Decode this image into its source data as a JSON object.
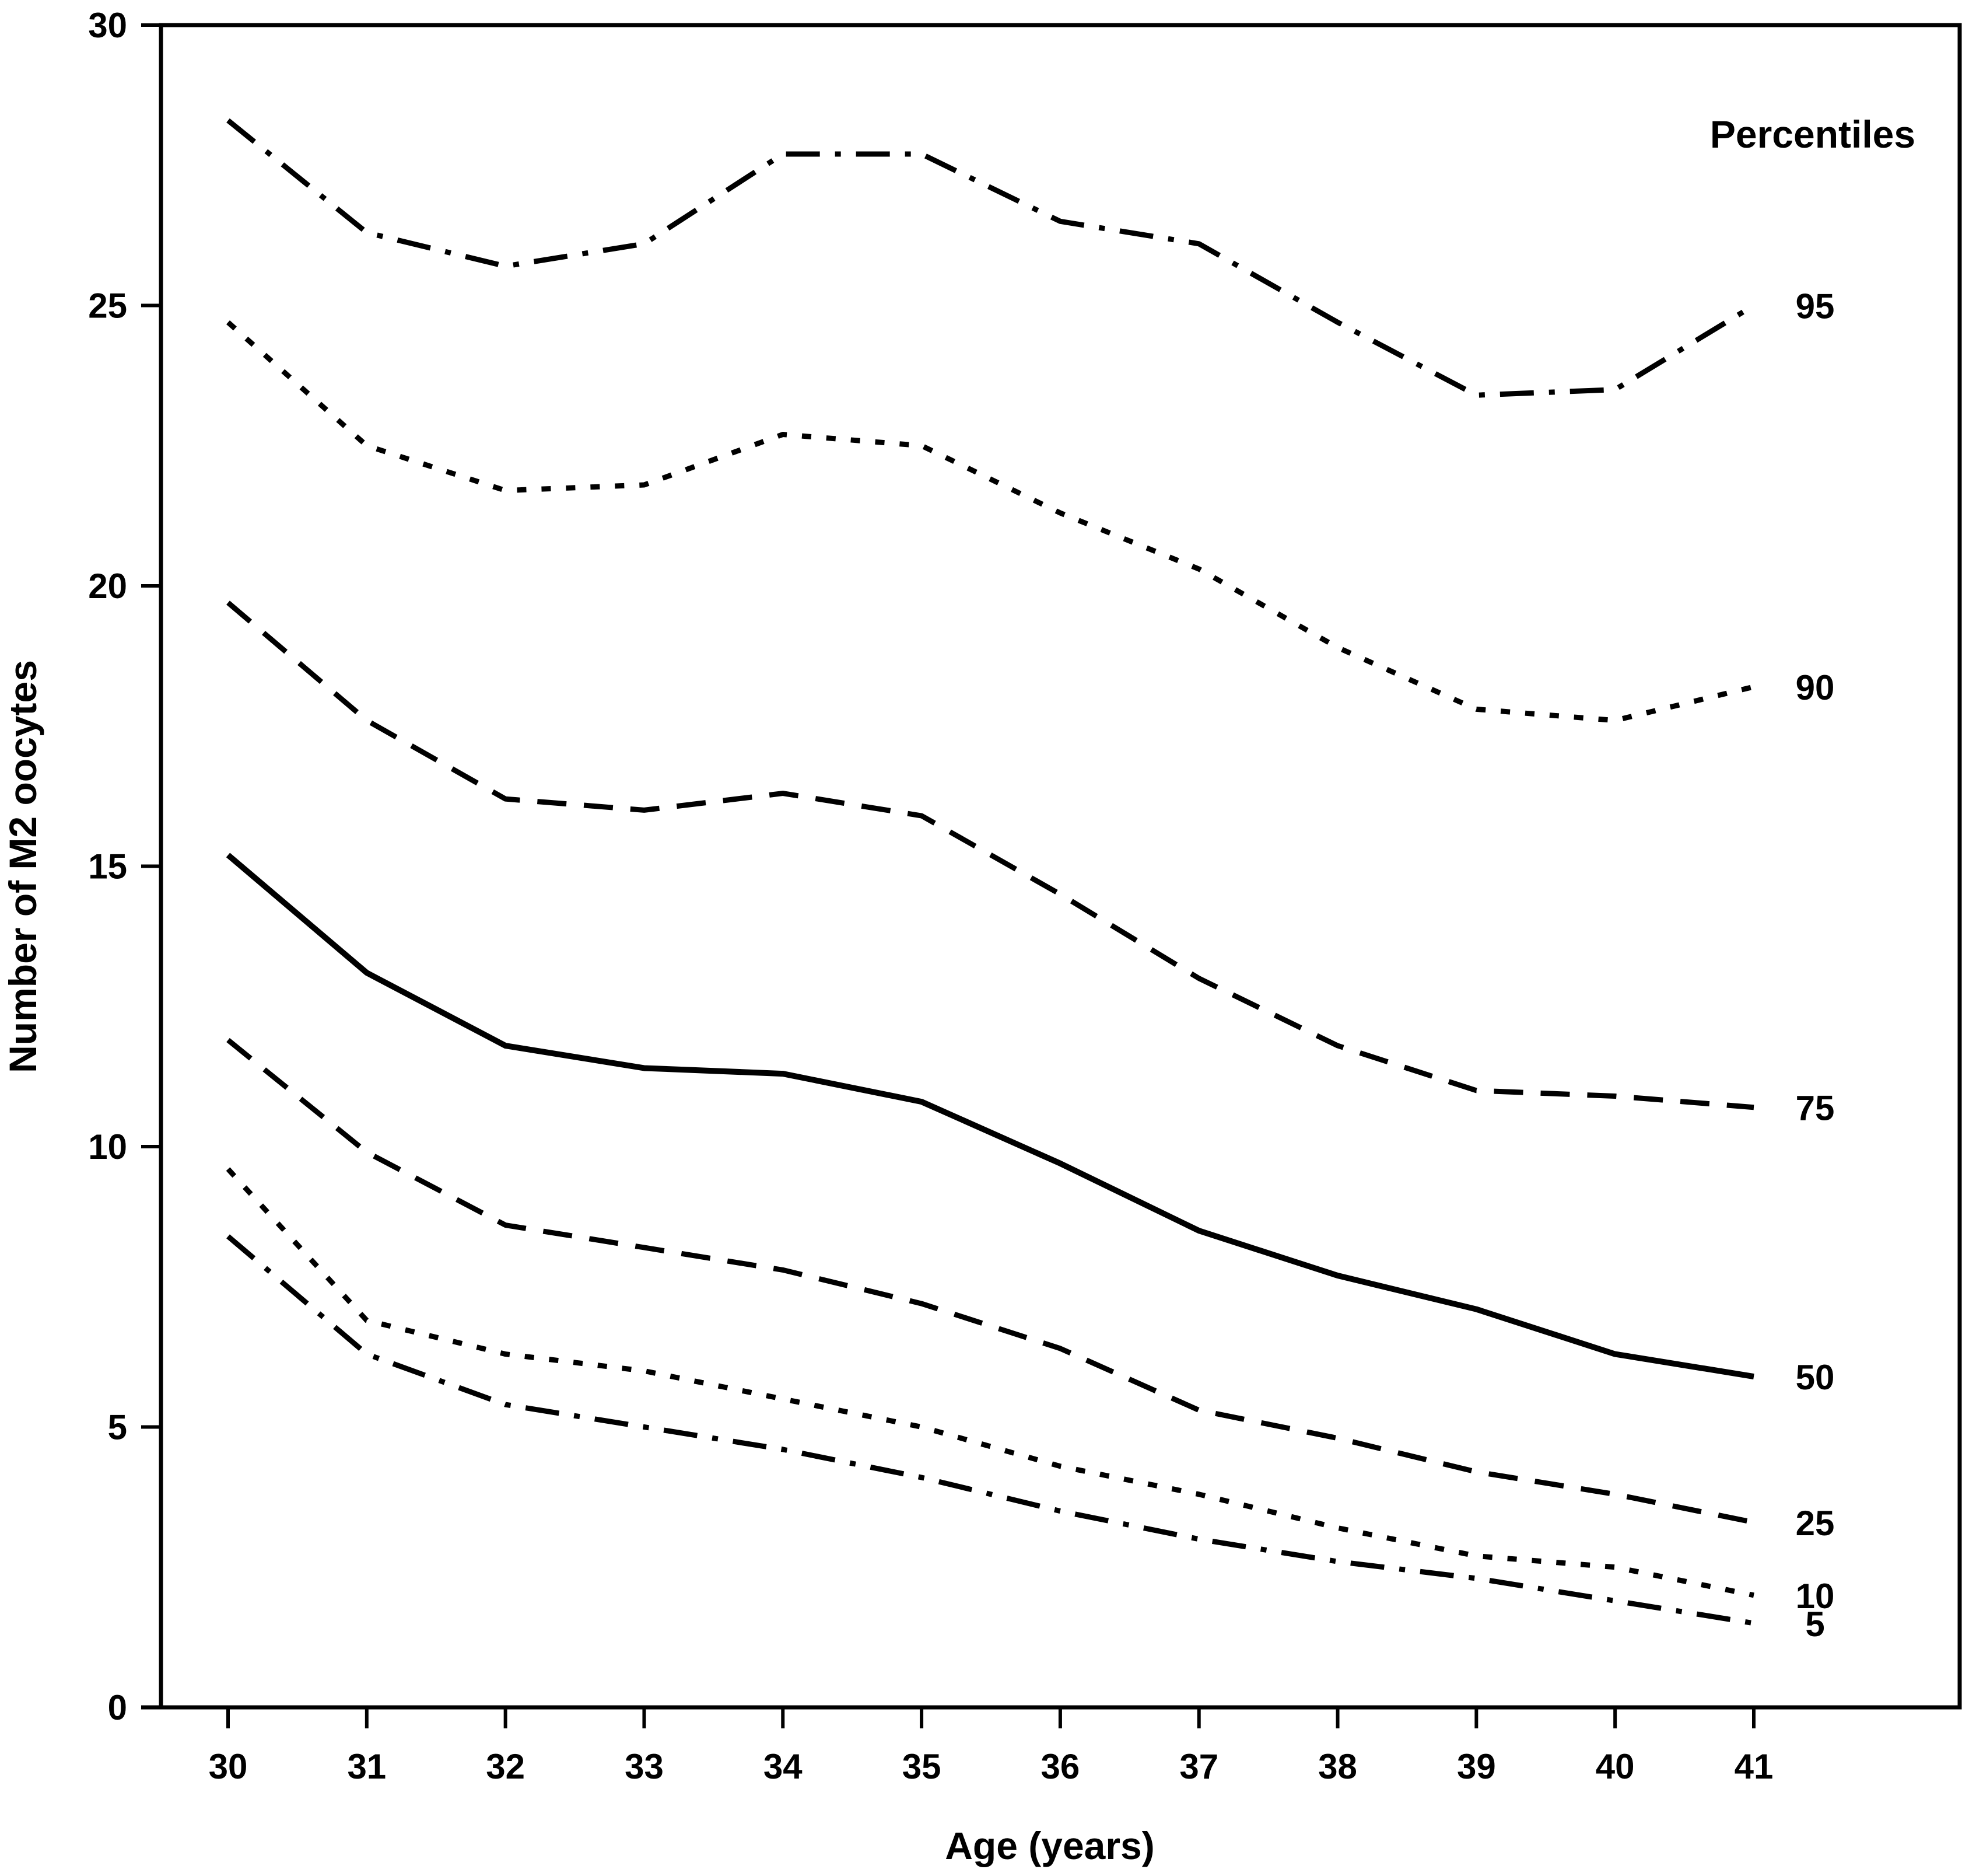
{
  "chart_data": {
    "type": "line",
    "legend_title": "Percentiles",
    "xlabel": "Age (years)",
    "ylabel": "Number of M2 oocytes",
    "x": [
      30,
      31,
      32,
      33,
      34,
      35,
      36,
      37,
      38,
      39,
      40,
      41
    ],
    "x_tick_labels": [
      "30",
      "31",
      "32",
      "33",
      "34",
      "35",
      "36",
      "37",
      "38",
      "39",
      "40",
      "41"
    ],
    "y_ticks": [
      0,
      5,
      10,
      15,
      20,
      25,
      30
    ],
    "y_tick_labels": [
      "0",
      "5",
      "10",
      "15",
      "20",
      "25",
      "30"
    ],
    "ylim": [
      0,
      30
    ],
    "xlim": [
      29.4,
      42.6
    ],
    "grid": false,
    "legend_position": "right-inline-labels",
    "line_color": "#000000",
    "background_color": "#ffffff",
    "series": [
      {
        "name": "95",
        "style": "dashdot",
        "values": [
          28.3,
          26.3,
          25.7,
          26.1,
          27.7,
          27.7,
          26.5,
          26.1,
          24.7,
          23.4,
          23.5,
          25.0
        ]
      },
      {
        "name": "90",
        "style": "dot",
        "values": [
          24.7,
          22.5,
          21.7,
          21.8,
          22.7,
          22.5,
          21.3,
          20.3,
          18.9,
          17.8,
          17.6,
          18.2
        ]
      },
      {
        "name": "75",
        "style": "dash",
        "values": [
          19.7,
          17.6,
          16.2,
          16.0,
          16.3,
          15.9,
          14.5,
          13.0,
          11.8,
          11.0,
          10.9,
          10.7
        ]
      },
      {
        "name": "50",
        "style": "solid",
        "values": [
          15.2,
          13.1,
          11.8,
          11.4,
          11.3,
          10.8,
          9.7,
          8.5,
          7.7,
          7.1,
          6.3,
          5.9
        ]
      },
      {
        "name": "25",
        "style": "dash",
        "values": [
          11.9,
          9.9,
          8.6,
          8.2,
          7.8,
          7.2,
          6.4,
          5.3,
          4.8,
          4.2,
          3.8,
          3.3
        ]
      },
      {
        "name": "10",
        "style": "dot",
        "values": [
          9.6,
          6.9,
          6.3,
          6.0,
          5.5,
          5.0,
          4.3,
          3.8,
          3.2,
          2.7,
          2.5,
          2.0
        ]
      },
      {
        "name": "5",
        "style": "dashdot",
        "values": [
          8.4,
          6.3,
          5.4,
          5.0,
          4.6,
          4.1,
          3.5,
          3.0,
          2.6,
          2.3,
          1.9,
          1.5
        ]
      }
    ]
  }
}
